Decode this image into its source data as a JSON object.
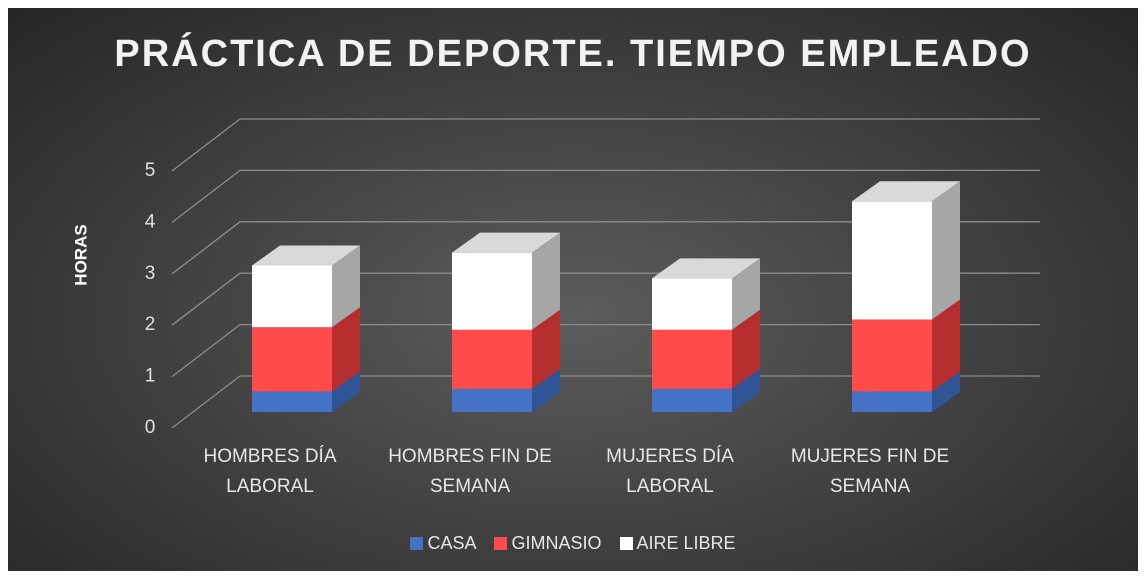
{
  "chart_data": {
    "type": "bar3d_stacked",
    "title": "PRÁCTICA DE DEPORTE. TIEMPO EMPLEADO",
    "y_label": "HORAS",
    "categories": [
      "HOMBRES DÍA LABORAL",
      "HOMBRES FIN DE SEMANA",
      "MUJERES DÍA LABORAL",
      "MUJERES FIN DE SEMANA"
    ],
    "series": [
      {
        "name": "CASA",
        "color": "#4472c4",
        "side_color": "#2f5597",
        "values": [
          0.4,
          0.45,
          0.45,
          0.4
        ]
      },
      {
        "name": "GIMNASIO",
        "color": "#ff4b4b",
        "side_color": "#b52f2f",
        "values": [
          1.25,
          1.15,
          1.15,
          1.4
        ]
      },
      {
        "name": "AIRE LIBRE",
        "color": "#ffffff",
        "side_color": "#a6a6a6",
        "values": [
          1.2,
          1.5,
          1.0,
          2.3
        ]
      }
    ],
    "ylim": [
      0,
      5
    ],
    "yticks": [
      0,
      1,
      2,
      3,
      4,
      5
    ],
    "grid": true,
    "legend": "bottom"
  }
}
